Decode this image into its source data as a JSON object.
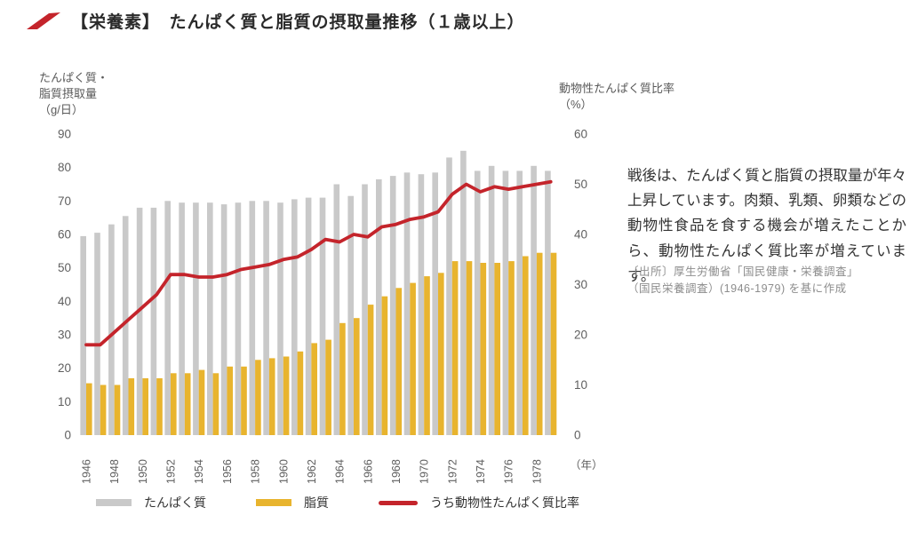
{
  "header": {
    "title": "【栄養素】　たんぱく質と脂質の摂取量推移（１歳以上）"
  },
  "description": {
    "body": "戦後は、たんぱく質と脂質の摂取量が年々上昇しています。肉類、乳類、卵類などの動物性食品を食する機会が増えたことから、動物性たんぱく質比率が増えています。",
    "source_line1": "〔出所〕厚生労働省「国民健康・栄養調査」",
    "source_line2": "（国民栄養調査）(1946-1979) を基に作成"
  },
  "legend": {
    "items": [
      {
        "label": "たんぱく質",
        "color": "#c9c9c9",
        "shape": "bar"
      },
      {
        "label": "脂質",
        "color": "#e8b42e",
        "shape": "bar"
      },
      {
        "label": "うち動物性たんぱく質比率",
        "color": "#c4242b",
        "shape": "line"
      }
    ]
  },
  "chart_data": {
    "type": "bar",
    "subtype": "grouped-bars-with-line-overlay",
    "title": "たんぱく質と脂質の摂取量推移（１歳以上）",
    "grid": false,
    "legend_position": "bottom",
    "x": [
      1946,
      1947,
      1948,
      1949,
      1950,
      1951,
      1952,
      1953,
      1954,
      1955,
      1956,
      1957,
      1958,
      1959,
      1960,
      1961,
      1962,
      1963,
      1964,
      1965,
      1966,
      1967,
      1968,
      1969,
      1970,
      1971,
      1972,
      1973,
      1974,
      1975,
      1976,
      1977,
      1978,
      1979
    ],
    "series": [
      {
        "name": "たんぱく質",
        "kind": "bar",
        "axis": "left",
        "color": "#c9c9c9",
        "values": [
          59.5,
          60.5,
          63,
          65.5,
          68,
          68,
          70,
          69.5,
          69.5,
          69.5,
          69,
          69.5,
          70,
          70,
          69.5,
          70.5,
          71,
          71,
          75,
          71.5,
          75,
          76.5,
          77.5,
          78.5,
          78,
          78.5,
          83,
          85,
          79,
          80.5,
          79,
          79,
          80.5,
          79
        ]
      },
      {
        "name": "脂質",
        "kind": "bar",
        "axis": "left",
        "color": "#e8b42e",
        "values": [
          15.5,
          15,
          15,
          17,
          17,
          17,
          18.5,
          18.5,
          19.5,
          18.5,
          20.5,
          20.5,
          22.5,
          23,
          23.5,
          25,
          27.5,
          28.5,
          33.5,
          35,
          39,
          41.5,
          44,
          45.5,
          47.5,
          48.5,
          52,
          52,
          51.5,
          51.5,
          52,
          53.5,
          54.5,
          54.5
        ]
      },
      {
        "name": "うち動物性たんぱく質比率",
        "kind": "line",
        "axis": "right",
        "color": "#c4242b",
        "values": [
          18,
          18,
          20.5,
          23,
          25.5,
          28,
          32,
          32,
          31.5,
          31.5,
          32,
          33,
          33.5,
          34,
          35,
          35.5,
          37,
          39,
          38.5,
          40,
          39.5,
          41.5,
          42,
          43,
          43.5,
          44.5,
          48,
          50,
          48.5,
          49.5,
          49,
          49.5,
          50,
          50.5
        ]
      }
    ],
    "left_axis": {
      "title_lines": [
        "たんぱく質・",
        "脂質摂取量",
        "（g/日）"
      ],
      "min": 0,
      "max": 90,
      "step": 10
    },
    "right_axis": {
      "title_lines": [
        "動物性たんぱく質比率",
        "（%）"
      ],
      "min": 0,
      "max": 60,
      "step": 10
    },
    "x_axis": {
      "labeled_years": [
        1946,
        1948,
        1950,
        1952,
        1954,
        1956,
        1958,
        1960,
        1962,
        1964,
        1966,
        1968,
        1970,
        1972,
        1974,
        1976,
        1978
      ],
      "unit_label": "（年）"
    }
  }
}
